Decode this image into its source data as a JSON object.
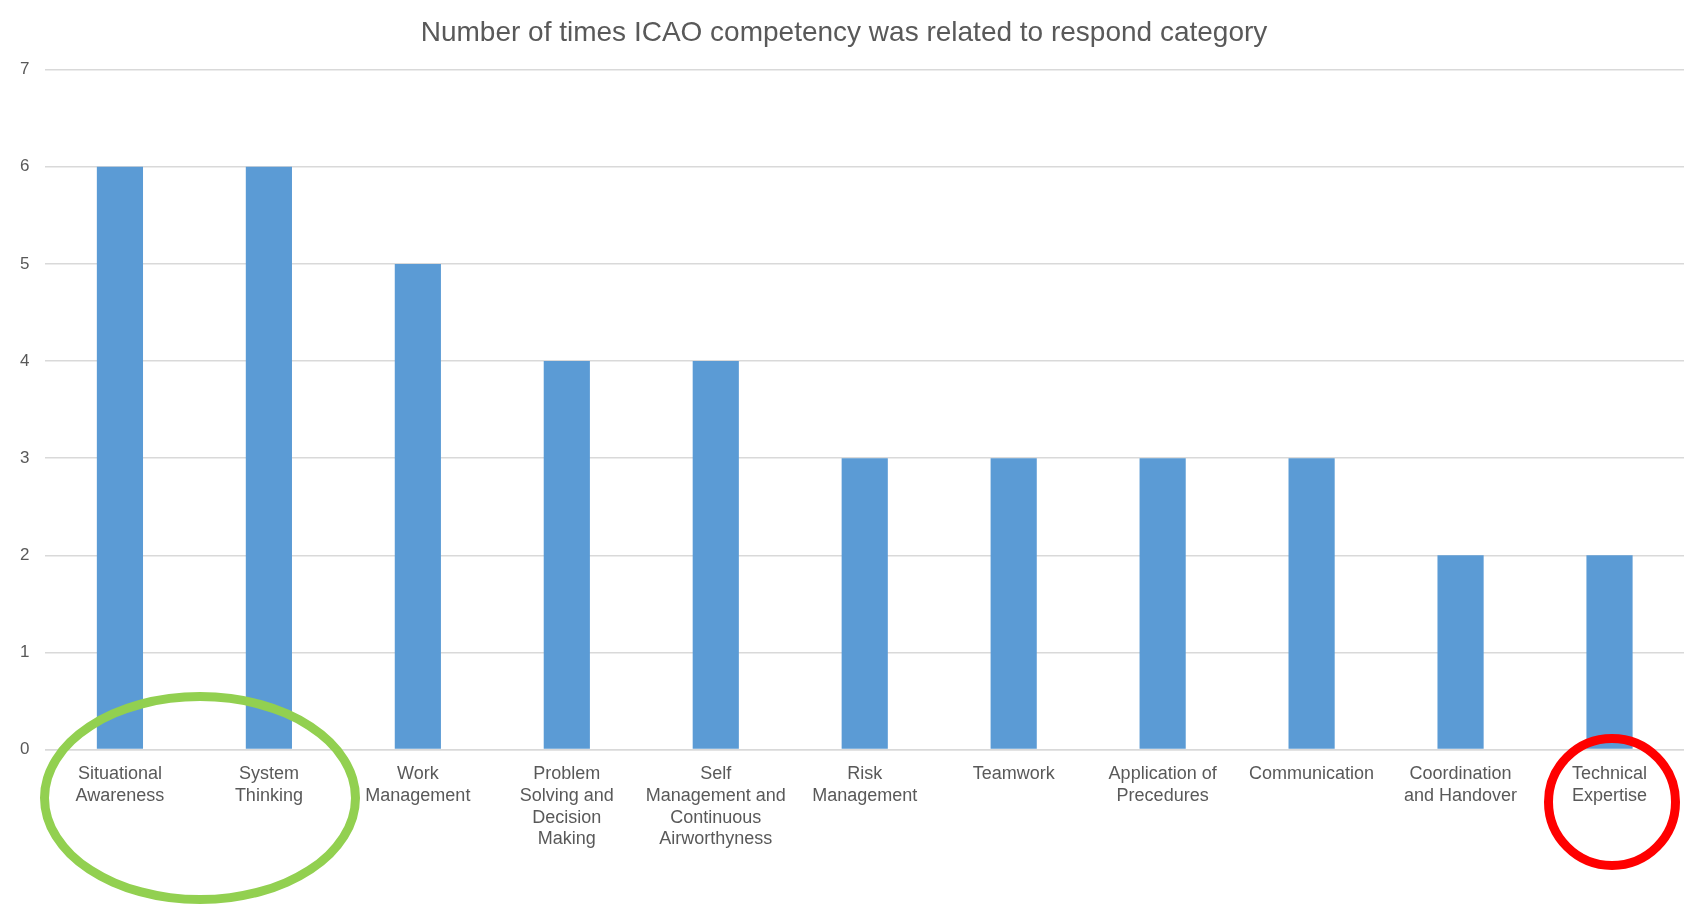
{
  "chart_data": {
    "type": "bar",
    "title": "Number of times ICAO competency was related to respond category",
    "categories": [
      "Situational Awareness",
      "System Thinking",
      "Work Management",
      "Problem Solving and Decision Making",
      "Self Management and Continuous Airworthyness",
      "Risk Management",
      "Teamwork",
      "Application of Precedures",
      "Communication",
      "Coordination and Handover",
      "Technical Expertise"
    ],
    "values": [
      6,
      6,
      5,
      4,
      4,
      3,
      3,
      3,
      3,
      2,
      2
    ],
    "color": "#5b9bd5",
    "ylim": [
      0,
      7
    ],
    "yticks": [
      0,
      1,
      2,
      3,
      4,
      5,
      6,
      7
    ],
    "grid": "y",
    "legend": false
  }
}
